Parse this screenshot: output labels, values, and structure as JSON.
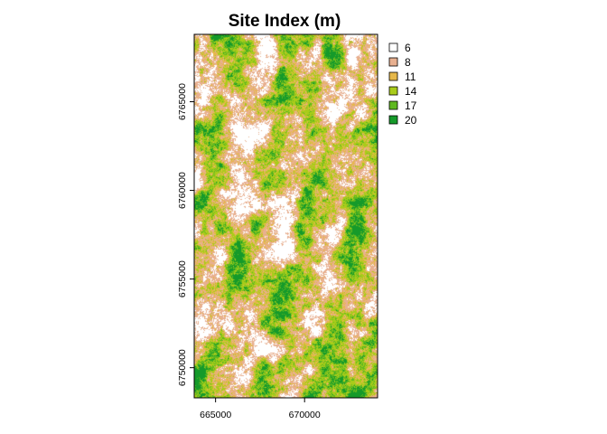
{
  "map": {
    "title": "Site Index (m)",
    "x_axis": {
      "range": [
        663800,
        674100
      ],
      "ticks": [
        {
          "value": 665000,
          "label": "665000"
        },
        {
          "value": 670000,
          "label": "670000"
        }
      ]
    },
    "y_axis": {
      "range": [
        6748300,
        6768800
      ],
      "ticks": [
        {
          "value": 6750000,
          "label": "6750000"
        },
        {
          "value": 6755000,
          "label": "6755000"
        },
        {
          "value": 6760000,
          "label": "6760000"
        },
        {
          "value": 6765000,
          "label": "6765000"
        }
      ]
    },
    "legend": {
      "placement": "right",
      "classes": [
        {
          "label": "6",
          "color": "#ffffff"
        },
        {
          "label": "8",
          "color": "#e8b090"
        },
        {
          "label": "11",
          "color": "#e6b84a"
        },
        {
          "label": "14",
          "color": "#a9cc1a"
        },
        {
          "label": "17",
          "color": "#5fb820"
        },
        {
          "label": "20",
          "color": "#159a2a"
        }
      ]
    }
  }
}
